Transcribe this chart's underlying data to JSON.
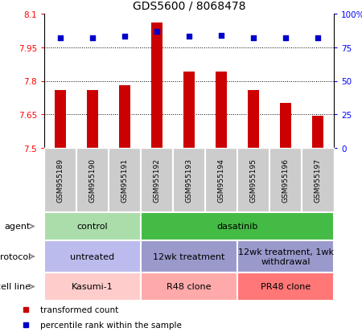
{
  "title": "GDS5600 / 8068478",
  "samples": [
    "GSM955189",
    "GSM955190",
    "GSM955191",
    "GSM955192",
    "GSM955193",
    "GSM955194",
    "GSM955195",
    "GSM955196",
    "GSM955197"
  ],
  "bar_values": [
    7.76,
    7.76,
    7.78,
    8.06,
    7.84,
    7.84,
    7.76,
    7.7,
    7.645
  ],
  "percentile_values": [
    82,
    82,
    83,
    87,
    83,
    84,
    82,
    82,
    82
  ],
  "ylim": [
    7.5,
    8.1
  ],
  "yticks_left": [
    7.5,
    7.65,
    7.8,
    7.95,
    8.1
  ],
  "yticks_right": [
    0,
    25,
    50,
    75,
    100
  ],
  "bar_color": "#cc0000",
  "dot_color": "#0000cc",
  "bar_bottom": 7.5,
  "agent_groups": [
    {
      "label": "control",
      "start": 0,
      "end": 3,
      "color": "#aaddaa"
    },
    {
      "label": "dasatinib",
      "start": 3,
      "end": 9,
      "color": "#44bb44"
    }
  ],
  "protocol_groups": [
    {
      "label": "untreated",
      "start": 0,
      "end": 3,
      "color": "#bbbbee"
    },
    {
      "label": "12wk treatment",
      "start": 3,
      "end": 6,
      "color": "#9999cc"
    },
    {
      "label": "12wk treatment, 1wk\nwithdrawal",
      "start": 6,
      "end": 9,
      "color": "#9999cc"
    }
  ],
  "cellline_groups": [
    {
      "label": "Kasumi-1",
      "start": 0,
      "end": 3,
      "color": "#ffcccc"
    },
    {
      "label": "R48 clone",
      "start": 3,
      "end": 6,
      "color": "#ffaaaa"
    },
    {
      "label": "PR48 clone",
      "start": 6,
      "end": 9,
      "color": "#ff7777"
    }
  ],
  "row_labels": [
    "agent",
    "protocol",
    "cell line"
  ],
  "legend_items": [
    {
      "label": "transformed count",
      "color": "#cc0000"
    },
    {
      "label": "percentile rank within the sample",
      "color": "#0000cc"
    }
  ],
  "sample_bg_color": "#cccccc",
  "sample_border_color": "#ffffff",
  "title_fontsize": 10,
  "tick_fontsize": 7.5,
  "label_fontsize": 8,
  "sample_label_fontsize": 6.5,
  "annot_fontsize": 8
}
